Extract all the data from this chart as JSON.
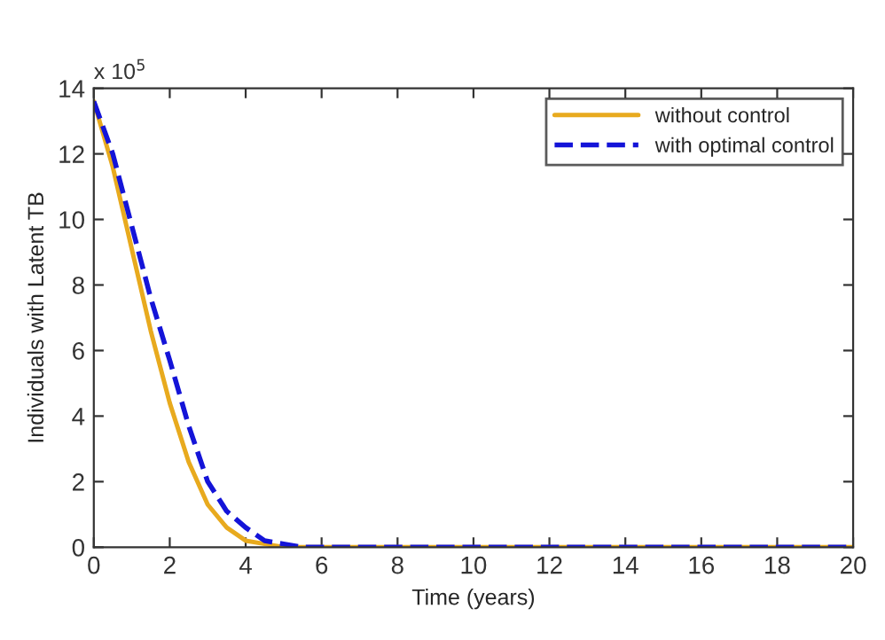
{
  "chart_data": {
    "type": "line",
    "xlabel": "Time (years)",
    "ylabel": "Individuals with Latent TB",
    "annotations": [
      "x 10$^{5}$"
    ],
    "x": [
      0,
      0.5,
      1,
      1.5,
      2,
      2.5,
      3,
      3.5,
      4,
      4.5,
      5,
      5.5,
      6,
      8,
      10,
      12,
      14,
      16,
      18,
      20
    ],
    "series": [
      {
        "name": "without control",
        "color": "#e8aa1e",
        "line_style": "solid",
        "values": [
          13.6,
          11.6,
          9.1,
          6.6,
          4.4,
          2.6,
          1.3,
          0.6,
          0.2,
          0.1,
          0,
          0,
          0,
          0,
          0,
          0,
          0,
          0,
          0,
          0
        ]
      },
      {
        "name": "with optimal control",
        "color": "#1414d8",
        "line_style": "dashed",
        "values": [
          13.6,
          12.0,
          9.8,
          7.6,
          5.7,
          3.7,
          2.0,
          1.1,
          0.6,
          0.2,
          0.1,
          0,
          0,
          0,
          0,
          0,
          0,
          0,
          0,
          0
        ]
      }
    ],
    "xlim": [
      0,
      20
    ],
    "xticks": [
      0,
      2,
      4,
      6,
      8,
      10,
      12,
      14,
      16,
      18,
      20
    ],
    "ylim": [
      0,
      14
    ],
    "yticks": [
      0,
      2,
      4,
      6,
      8,
      10,
      12,
      14
    ],
    "grid": false,
    "legend": "top right"
  }
}
